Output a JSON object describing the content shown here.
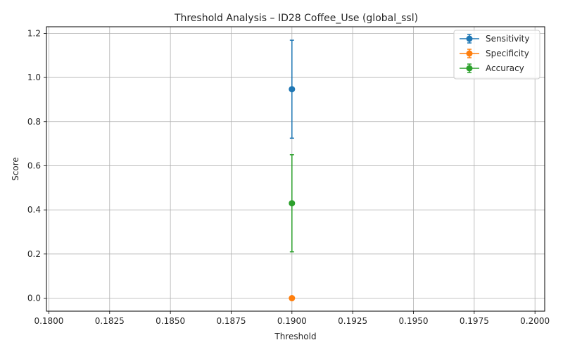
{
  "chart_data": {
    "type": "scatter",
    "title": "Threshold Analysis – ID28 Coffee_Use (global_ssl)",
    "xlabel": "Threshold",
    "ylabel": "Score",
    "xlim": [
      0.1799,
      0.2004
    ],
    "ylim": [
      -0.059,
      1.23
    ],
    "xticks": [
      0.18,
      0.1825,
      0.185,
      0.1875,
      0.19,
      0.1925,
      0.195,
      0.1975,
      0.2
    ],
    "xtick_labels": [
      "0.1800",
      "0.1825",
      "0.1850",
      "0.1875",
      "0.1900",
      "0.1925",
      "0.1950",
      "0.1975",
      "0.2000"
    ],
    "yticks": [
      0.0,
      0.2,
      0.4,
      0.6,
      0.8,
      1.0,
      1.2
    ],
    "ytick_labels": [
      "0.0",
      "0.2",
      "0.4",
      "0.6",
      "0.8",
      "1.0",
      "1.2"
    ],
    "grid": true,
    "legend_position": "top-right",
    "series": [
      {
        "name": "Sensitivity",
        "color": "#1f77b4",
        "x": [
          0.19
        ],
        "y": [
          0.947
        ],
        "yerr": [
          0.222
        ]
      },
      {
        "name": "Specificity",
        "color": "#ff7f0e",
        "x": [
          0.19
        ],
        "y": [
          0.0
        ],
        "yerr": [
          0.0
        ]
      },
      {
        "name": "Accuracy",
        "color": "#2ca02c",
        "x": [
          0.19
        ],
        "y": [
          0.43
        ],
        "yerr": [
          0.22
        ]
      }
    ]
  }
}
